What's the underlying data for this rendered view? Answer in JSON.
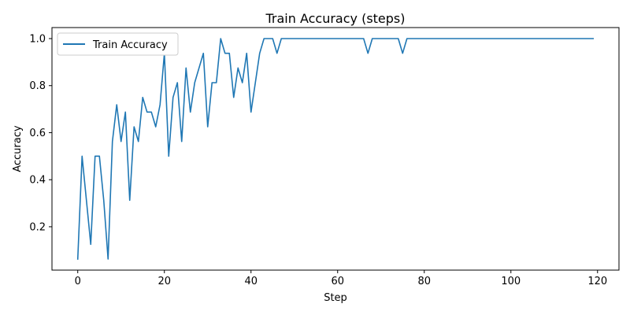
{
  "chart_data": {
    "type": "line",
    "title": "Train Accuracy (steps)",
    "xlabel": "Step",
    "ylabel": "Accuracy",
    "xlim": [
      -5.95,
      124.95
    ],
    "ylim": [
      0.015625,
      1.046875
    ],
    "x_ticks": [
      0,
      20,
      40,
      60,
      80,
      100,
      120
    ],
    "y_ticks": [
      0.2,
      0.4,
      0.6,
      0.8,
      1.0
    ],
    "x_tick_labels": [
      "0",
      "20",
      "40",
      "60",
      "80",
      "100",
      "120"
    ],
    "y_tick_labels": [
      "0.2",
      "0.4",
      "0.6",
      "0.8",
      "1.0"
    ],
    "grid": false,
    "legend_position": "top-left",
    "series": [
      {
        "name": "Train Accuracy",
        "color": "#1f77b4",
        "x": [
          0,
          1,
          2,
          3,
          4,
          5,
          6,
          7,
          8,
          9,
          10,
          11,
          12,
          13,
          14,
          15,
          16,
          17,
          18,
          19,
          20,
          21,
          22,
          23,
          24,
          25,
          26,
          27,
          28,
          29,
          30,
          31,
          32,
          33,
          34,
          35,
          36,
          37,
          38,
          39,
          40,
          41,
          42,
          43,
          44,
          45,
          46,
          47,
          48,
          49,
          50,
          51,
          52,
          53,
          54,
          55,
          56,
          57,
          58,
          59,
          60,
          61,
          62,
          63,
          64,
          65,
          66,
          67,
          68,
          69,
          70,
          71,
          72,
          73,
          74,
          75,
          76,
          77,
          78,
          79,
          80,
          81,
          82,
          83,
          84,
          85,
          86,
          87,
          88,
          89,
          90,
          91,
          92,
          93,
          94,
          95,
          96,
          97,
          98,
          99,
          100,
          101,
          102,
          103,
          104,
          105,
          106,
          107,
          108,
          109,
          110,
          111,
          112,
          113,
          114,
          115,
          116,
          117,
          118,
          119
        ],
        "values": [
          0.0625,
          0.5,
          0.3125,
          0.125,
          0.5,
          0.5,
          0.3125,
          0.0625,
          0.5625,
          0.71875,
          0.5625,
          0.6875,
          0.3125,
          0.625,
          0.5625,
          0.75,
          0.6875,
          0.6875,
          0.625,
          0.71875,
          0.9375,
          0.5,
          0.75,
          0.8125,
          0.5625,
          0.875,
          0.6875,
          0.8125,
          0.875,
          0.9375,
          0.625,
          0.8125,
          0.8125,
          1.0,
          0.9375,
          0.9375,
          0.75,
          0.875,
          0.8125,
          0.9375,
          0.6875,
          0.8125,
          0.9375,
          1.0,
          1.0,
          1.0,
          0.9375,
          1.0,
          1.0,
          1.0,
          1.0,
          1.0,
          1.0,
          1.0,
          1.0,
          1.0,
          1.0,
          1.0,
          1.0,
          1.0,
          1.0,
          1.0,
          1.0,
          1.0,
          1.0,
          1.0,
          1.0,
          0.9375,
          1.0,
          1.0,
          1.0,
          1.0,
          1.0,
          1.0,
          1.0,
          0.9375,
          1.0,
          1.0,
          1.0,
          1.0,
          1.0,
          1.0,
          1.0,
          1.0,
          1.0,
          1.0,
          1.0,
          1.0,
          1.0,
          1.0,
          1.0,
          1.0,
          1.0,
          1.0,
          1.0,
          1.0,
          1.0,
          1.0,
          1.0,
          1.0,
          1.0,
          1.0,
          1.0,
          1.0,
          1.0,
          1.0,
          1.0,
          1.0,
          1.0,
          1.0,
          1.0,
          1.0,
          1.0,
          1.0,
          1.0,
          1.0,
          1.0,
          1.0,
          1.0,
          1.0
        ]
      }
    ]
  }
}
